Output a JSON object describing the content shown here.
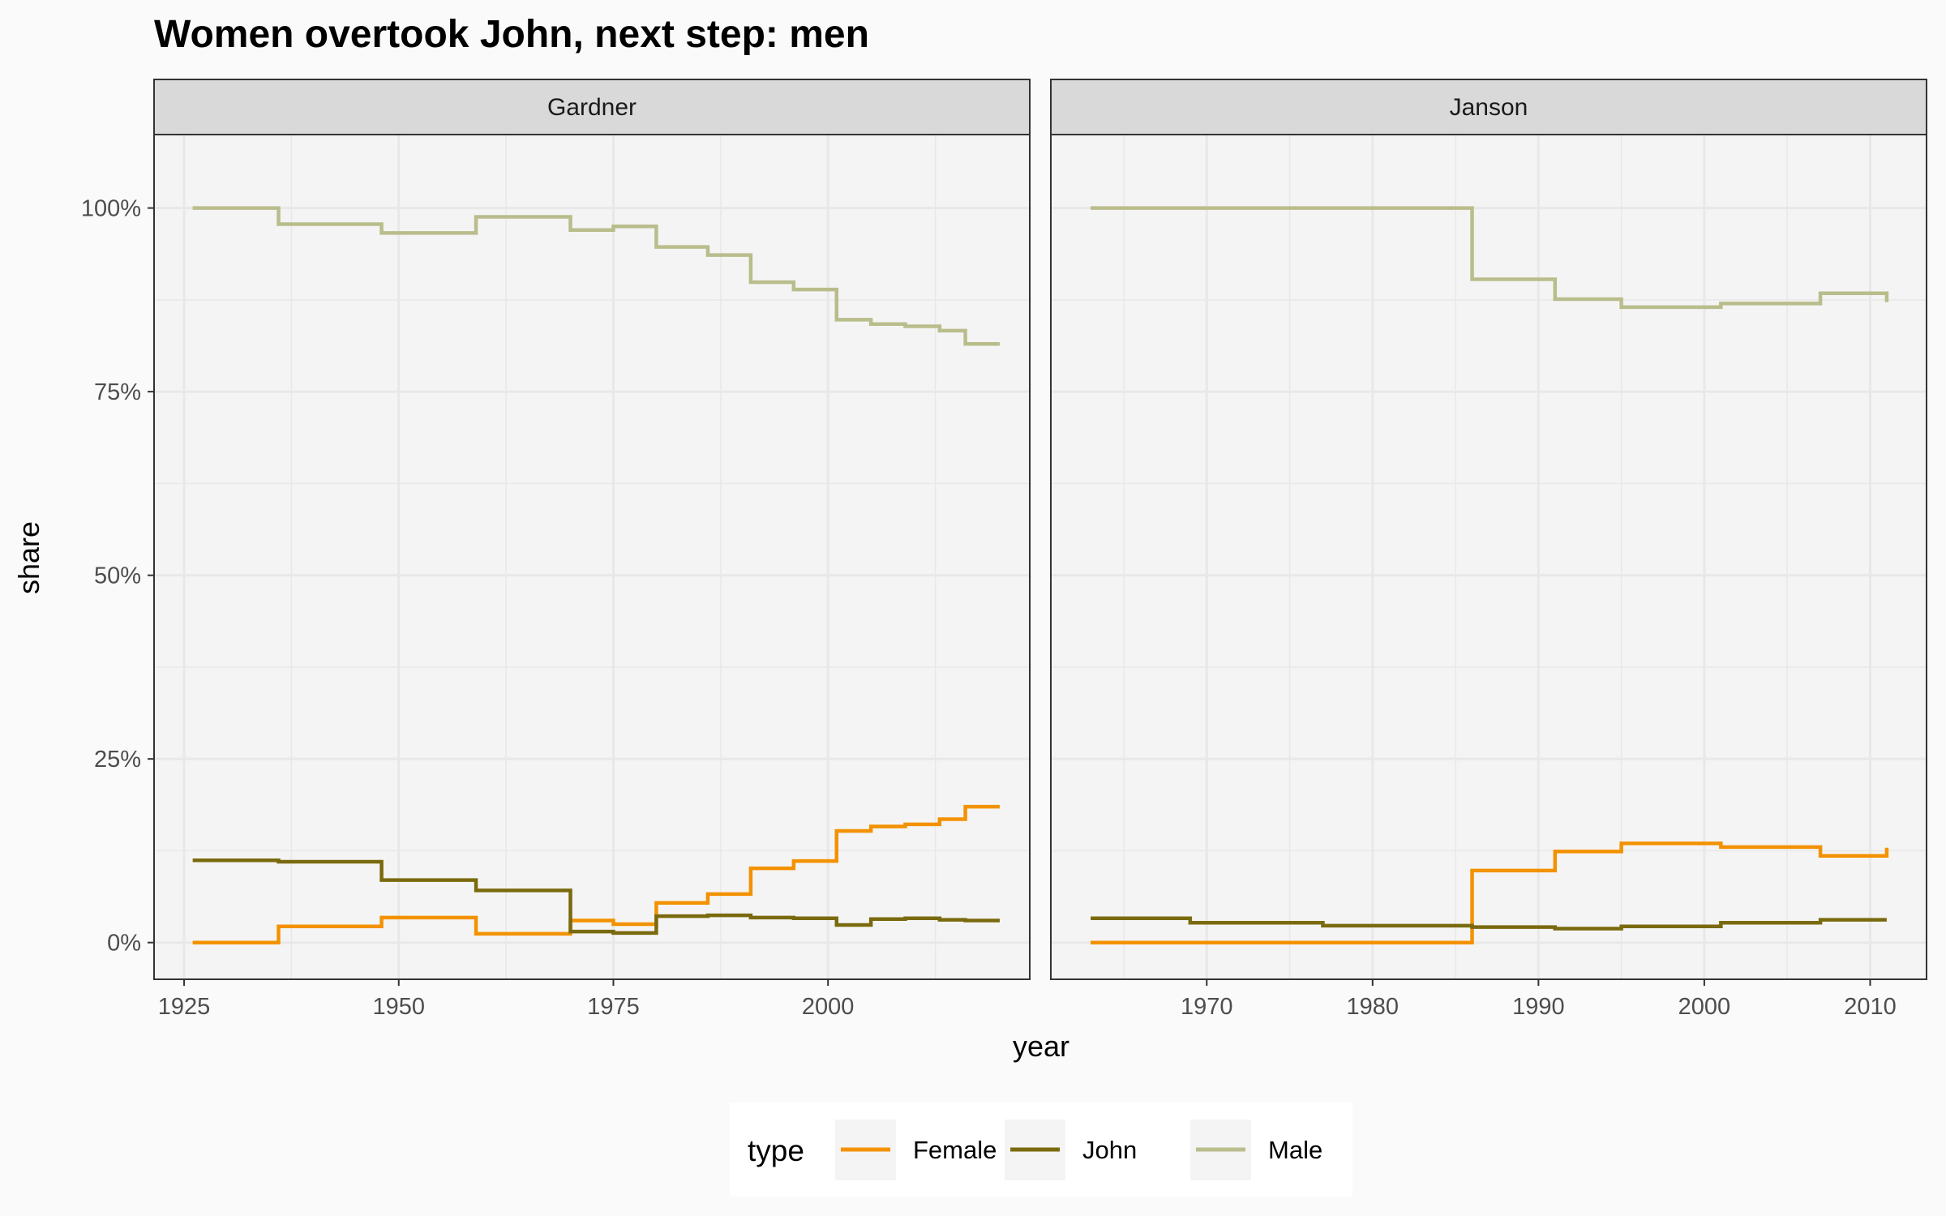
{
  "title": {
    "parts": [
      {
        "text": "Women",
        "color": "#f39200"
      },
      {
        "text": " overtook ",
        "color": "#000000"
      },
      {
        "text": "John",
        "color": "#7a6a0e"
      },
      {
        "text": ", next step: ",
        "color": "#000000"
      },
      {
        "text": "men",
        "color": "#b9bd8b"
      }
    ]
  },
  "colors": {
    "Female": "#f39200",
    "John": "#7a6a0e",
    "Male": "#b9bd8b",
    "panel_bg": "#f4f4f4",
    "strip_bg": "#d9d9d9",
    "grid": "#e8e8e8"
  },
  "chart_data": {
    "type": "line",
    "step": true,
    "xlabel": "year",
    "ylabel": "share",
    "ylim": [
      -0.05,
      1.1
    ],
    "yticks": [
      0,
      0.25,
      0.5,
      0.75,
      1.0
    ],
    "ytick_labels": [
      "0%",
      "25%",
      "50%",
      "75%",
      "100%"
    ],
    "grid": true,
    "legend": {
      "title": "type",
      "position": "bottom",
      "entries": [
        "Female",
        "John",
        "Male"
      ]
    },
    "facets": [
      {
        "name": "Gardner",
        "xlim": [
          1921.5,
          2023.5
        ],
        "xticks": [
          1925,
          1950,
          1975,
          2000
        ],
        "series": [
          {
            "name": "Female",
            "x": [
              1926,
              1936,
              1948,
              1959,
              1970,
              1975,
              1980,
              1986,
              1991,
              1996,
              2001,
              2005,
              2009,
              2013,
              2016,
              2020
            ],
            "values": [
              0.0,
              0.022,
              0.034,
              0.012,
              0.03,
              0.025,
              0.054,
              0.066,
              0.101,
              0.111,
              0.152,
              0.158,
              0.161,
              0.168,
              0.185,
              0.185
            ]
          },
          {
            "name": "John",
            "x": [
              1926,
              1936,
              1948,
              1959,
              1970,
              1975,
              1980,
              1986,
              1991,
              1996,
              2001,
              2005,
              2009,
              2013,
              2016,
              2020
            ],
            "values": [
              0.112,
              0.11,
              0.085,
              0.071,
              0.015,
              0.013,
              0.036,
              0.037,
              0.034,
              0.033,
              0.024,
              0.032,
              0.033,
              0.031,
              0.03,
              0.03
            ]
          },
          {
            "name": "Male",
            "x": [
              1926,
              1936,
              1948,
              1959,
              1970,
              1975,
              1980,
              1986,
              1991,
              1996,
              2001,
              2005,
              2009,
              2013,
              2016,
              2020
            ],
            "values": [
              1.0,
              0.978,
              0.966,
              0.988,
              0.97,
              0.975,
              0.947,
              0.936,
              0.899,
              0.889,
              0.848,
              0.842,
              0.839,
              0.833,
              0.815,
              0.815
            ]
          }
        ]
      },
      {
        "name": "Janson",
        "xlim": [
          1960.6,
          2013.4
        ],
        "xticks": [
          1970,
          1980,
          1990,
          2000,
          2010
        ],
        "series": [
          {
            "name": "Female",
            "x": [
              1963,
              1969,
              1977,
              1986,
              1991,
              1995,
              2001,
              2007,
              2011
            ],
            "values": [
              0.0,
              0.0,
              0.0,
              0.098,
              0.124,
              0.135,
              0.13,
              0.118,
              0.129
            ]
          },
          {
            "name": "John",
            "x": [
              1963,
              1969,
              1977,
              1986,
              1991,
              1995,
              2001,
              2007,
              2011
            ],
            "values": [
              0.033,
              0.027,
              0.023,
              0.021,
              0.019,
              0.022,
              0.027,
              0.031,
              0.031
            ]
          },
          {
            "name": "Male",
            "x": [
              1963,
              1969,
              1977,
              1986,
              1991,
              1995,
              2001,
              2007,
              2011
            ],
            "values": [
              1.0,
              1.0,
              1.0,
              0.903,
              0.876,
              0.865,
              0.87,
              0.884,
              0.872
            ]
          }
        ]
      }
    ]
  }
}
